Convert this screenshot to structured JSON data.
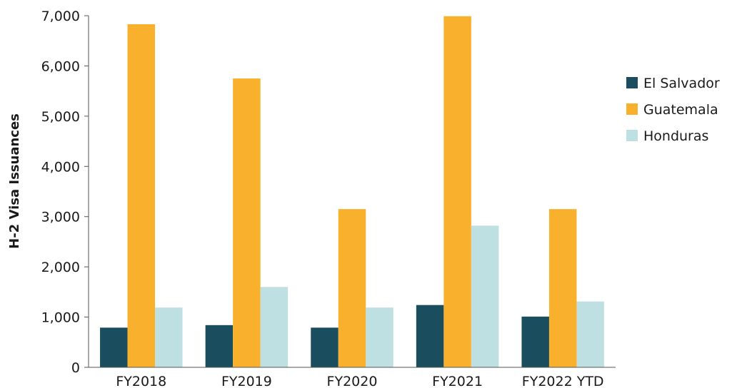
{
  "chart_data": {
    "type": "bar",
    "title": "",
    "xlabel": "",
    "ylabel": "H-2 Visa Issuances",
    "categories": [
      "FY2018",
      "FY2019",
      "FY2020",
      "FY2021",
      "FY2022  YTD"
    ],
    "series": [
      {
        "name": "El Salvador",
        "color": "#1a4e5e",
        "values": [
          790,
          840,
          790,
          1240,
          1010
        ]
      },
      {
        "name": "Guatemala",
        "color": "#f9b02d",
        "values": [
          6830,
          5750,
          3150,
          6990,
          3150
        ]
      },
      {
        "name": "Honduras",
        "color": "#bfe0e2",
        "values": [
          1190,
          1600,
          1190,
          2820,
          1310
        ]
      }
    ],
    "ylim": [
      0,
      7000
    ],
    "yticks": [
      "0",
      "1,000",
      "2,000",
      "3,000",
      "4,000",
      "5,000",
      "6,000",
      "7,000"
    ],
    "grid": false,
    "legend_position": "right"
  }
}
